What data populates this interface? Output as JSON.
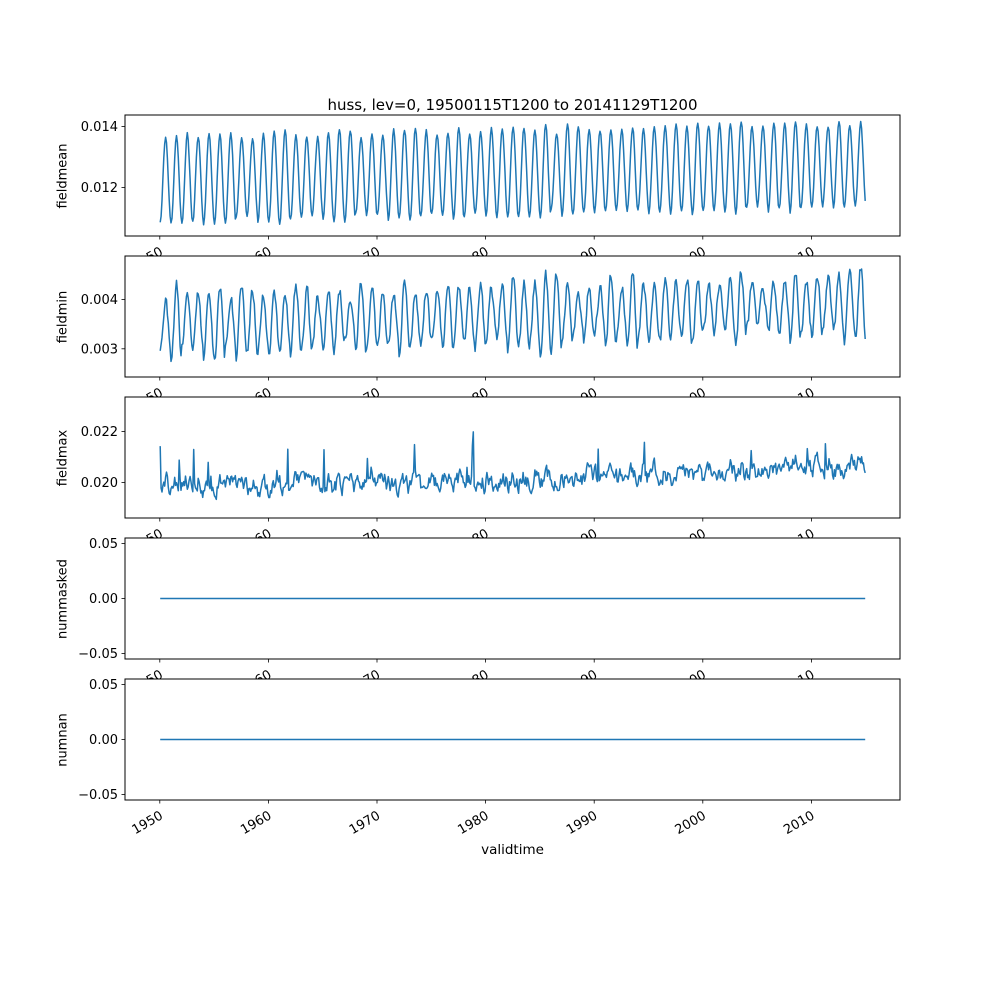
{
  "style": {
    "background": "#ffffff",
    "line_color": "#1f77b4",
    "axes_color": "#000000",
    "text_color": "#000000"
  },
  "chart_data": {
    "type": "line",
    "title": "huss, lev=0, 19500115T1200 to 20141129T1200",
    "xlabel": "validtime",
    "legend": "none",
    "grid": false,
    "x_start": 1950.04,
    "x_end": 2014.92,
    "points_per_year": 12,
    "xlim": [
      1946.8,
      2018.16
    ],
    "xticks": [
      1950,
      1960,
      1970,
      1980,
      1990,
      2000,
      2010
    ],
    "xtick_labels": [
      "1950",
      "1960",
      "1970",
      "1980",
      "1990",
      "2000",
      "2010"
    ],
    "xtick_rotation_deg": 30,
    "subplots": [
      {
        "ylabel": "fieldmean",
        "ylim": [
          0.0104,
          0.01438
        ],
        "yticks": [
          0.012,
          0.014
        ],
        "ytick_labels": [
          "0.012",
          "0.014"
        ],
        "observed": {
          "min": 0.0106,
          "max": 0.0141,
          "mean": 0.0123,
          "pattern": "annual seasonal cycle, slight upward trend"
        },
        "series": {
          "kind": "seasonal",
          "seed": 11,
          "mean": 0.01225,
          "amp": 0.0014,
          "amp_jitter": 0.1,
          "trend": 0.0005,
          "trend_pow": 1,
          "noise": 5e-05,
          "ar": 0.5,
          "spike_p": 0,
          "spike": 0
        }
      },
      {
        "ylabel": "fieldmin",
        "ylim": [
          0.00243,
          0.00488
        ],
        "yticks": [
          0.003,
          0.004
        ],
        "ytick_labels": [
          "0.003",
          "0.004"
        ],
        "observed": {
          "min": 0.0025,
          "max": 0.0048,
          "mean": 0.0035,
          "pattern": "noisy annual seasonal cycle, slight upward trend"
        },
        "series": {
          "kind": "seasonal",
          "seed": 23,
          "mean": 0.0035,
          "amp": 0.0006,
          "amp_jitter": 0.3,
          "trend": 0.0004,
          "trend_pow": 1,
          "noise": 0.0001,
          "ar": 0.5,
          "spike_p": 0,
          "spike": 0
        }
      },
      {
        "ylabel": "fieldmax",
        "ylim": [
          0.0186,
          0.02336
        ],
        "yticks": [
          0.02,
          0.022
        ],
        "ytick_labels": [
          "0.020",
          "0.022"
        ],
        "observed": {
          "min": 0.0189,
          "max": 0.0234,
          "mean": 0.0201,
          "pattern": "irregular noise, rising after ~1995, spikes to top"
        },
        "series": {
          "kind": "seasonal",
          "seed": 37,
          "mean": 0.0199,
          "amp": 0.00012,
          "amp_jitter": 0.5,
          "trend": 0.0008,
          "trend_pow": 2,
          "noise": 0.00032,
          "ar": 0.55,
          "spike_p": 0.03,
          "spike": 0.0018
        }
      },
      {
        "ylabel": "nummasked",
        "ylim": [
          -0.055,
          0.055
        ],
        "yticks": [
          -0.05,
          0,
          0.05
        ],
        "ytick_labels": [
          "−0.05",
          "0.00",
          "0.05"
        ],
        "observed": {
          "min": 0,
          "max": 0,
          "mean": 0,
          "pattern": "constant zero"
        },
        "series": {
          "kind": "constant",
          "value": 0
        }
      },
      {
        "ylabel": "numnan",
        "ylim": [
          -0.055,
          0.055
        ],
        "yticks": [
          -0.05,
          0,
          0.05
        ],
        "ytick_labels": [
          "−0.05",
          "0.00",
          "0.05"
        ],
        "observed": {
          "min": 0,
          "max": 0,
          "mean": 0,
          "pattern": "constant zero"
        },
        "series": {
          "kind": "constant",
          "value": 0
        }
      }
    ]
  }
}
